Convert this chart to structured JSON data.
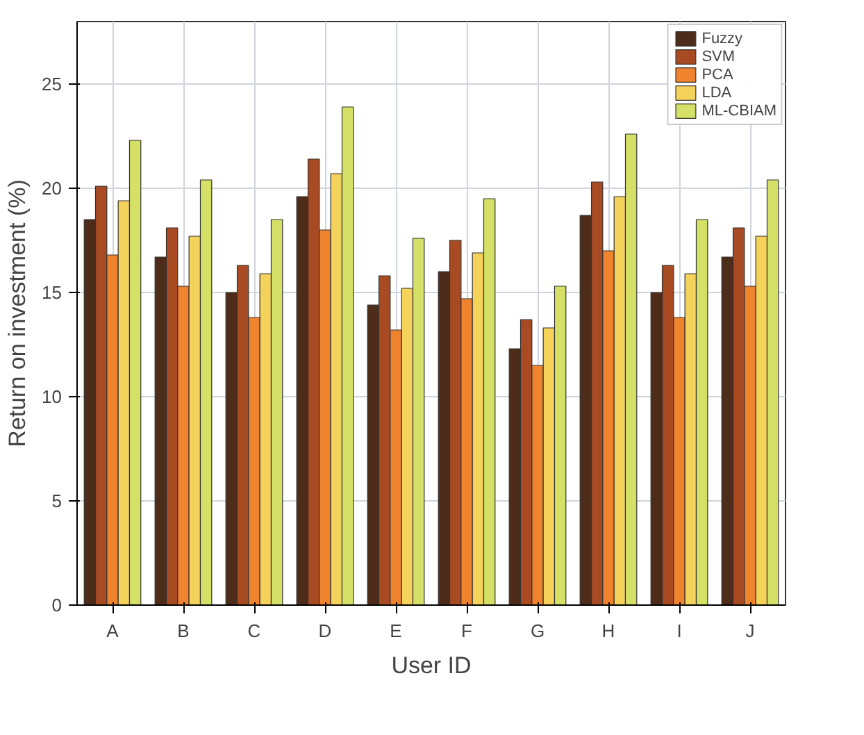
{
  "chart_data": {
    "type": "bar",
    "xlabel": "User ID",
    "ylabel": "Return on investment (%)",
    "categories": [
      "A",
      "B",
      "C",
      "D",
      "E",
      "F",
      "G",
      "H",
      "I",
      "J"
    ],
    "series": [
      {
        "name": "Fuzzy",
        "color": "#4e2c1a",
        "values": [
          18.5,
          16.7,
          15.0,
          19.6,
          14.4,
          16.0,
          12.3,
          18.7,
          15.0,
          16.7
        ]
      },
      {
        "name": "SVM",
        "color": "#a84a22",
        "values": [
          20.1,
          18.1,
          16.3,
          21.4,
          15.8,
          17.5,
          13.7,
          20.3,
          16.3,
          18.1
        ]
      },
      {
        "name": "PCA",
        "color": "#f0832e",
        "values": [
          16.8,
          15.3,
          13.8,
          18.0,
          13.2,
          14.7,
          11.5,
          17.0,
          13.8,
          15.3
        ]
      },
      {
        "name": "LDA",
        "color": "#f5d25a",
        "values": [
          19.4,
          17.7,
          15.9,
          20.7,
          15.2,
          16.9,
          13.3,
          19.6,
          15.9,
          17.7
        ]
      },
      {
        "name": "ML-CBIAM",
        "color": "#d4e066",
        "values": [
          22.3,
          20.4,
          18.5,
          23.9,
          17.6,
          19.5,
          15.3,
          22.6,
          18.5,
          20.4
        ]
      }
    ],
    "ylim": [
      0,
      28
    ],
    "yticks": [
      0,
      5,
      10,
      15,
      20,
      25
    ],
    "grid": true,
    "legend": "top right"
  }
}
